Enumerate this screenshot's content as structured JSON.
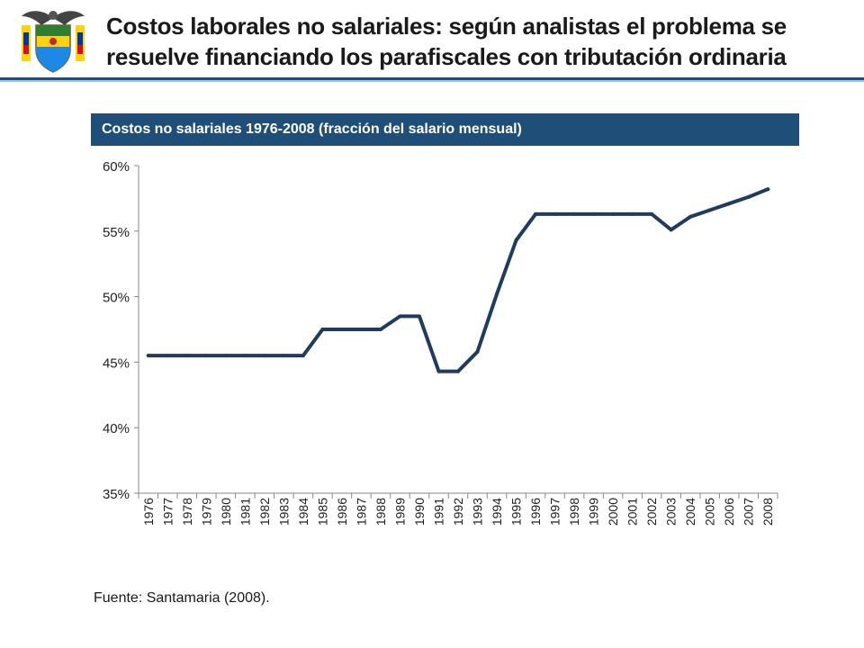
{
  "header": {
    "title_line1": "Costos laborales no salariales: según analistas el problema se",
    "title_line2": "resuelve financiando los parafiscales con tributación ordinaria",
    "crest_icon": "colombia-coat-of-arms-icon",
    "accent_color": "#1f4e79"
  },
  "chart_data": {
    "type": "line",
    "title": "Costos no salariales  1976-2008 (fracción del salario mensual)",
    "xlabel": "",
    "ylabel": "",
    "categories": [
      "1976",
      "1977",
      "1978",
      "1979",
      "1980",
      "1981",
      "1982",
      "1983",
      "1984",
      "1985",
      "1986",
      "1987",
      "1988",
      "1989",
      "1990",
      "1991",
      "1992",
      "1993",
      "1994",
      "1995",
      "1996",
      "1997",
      "1998",
      "1999",
      "2000",
      "2001",
      "2002",
      "2003",
      "2004",
      "2005",
      "2006",
      "2007",
      "2008"
    ],
    "values": [
      45.5,
      45.5,
      45.5,
      45.5,
      45.5,
      45.5,
      45.5,
      45.5,
      45.5,
      47.5,
      47.5,
      47.5,
      47.5,
      48.5,
      48.5,
      44.3,
      44.3,
      45.8,
      50.2,
      54.3,
      56.3,
      56.3,
      56.3,
      56.3,
      56.3,
      56.3,
      56.3,
      55.1,
      56.1,
      56.6,
      57.1,
      57.6,
      58.2
    ],
    "yticks": [
      "35%",
      "40%",
      "45%",
      "50%",
      "55%",
      "60%"
    ],
    "ylim": [
      35,
      60
    ],
    "line_color": "#1f3b5e",
    "grid": false
  },
  "footer": {
    "source": "Fuente: Santamaria  (2008)."
  }
}
